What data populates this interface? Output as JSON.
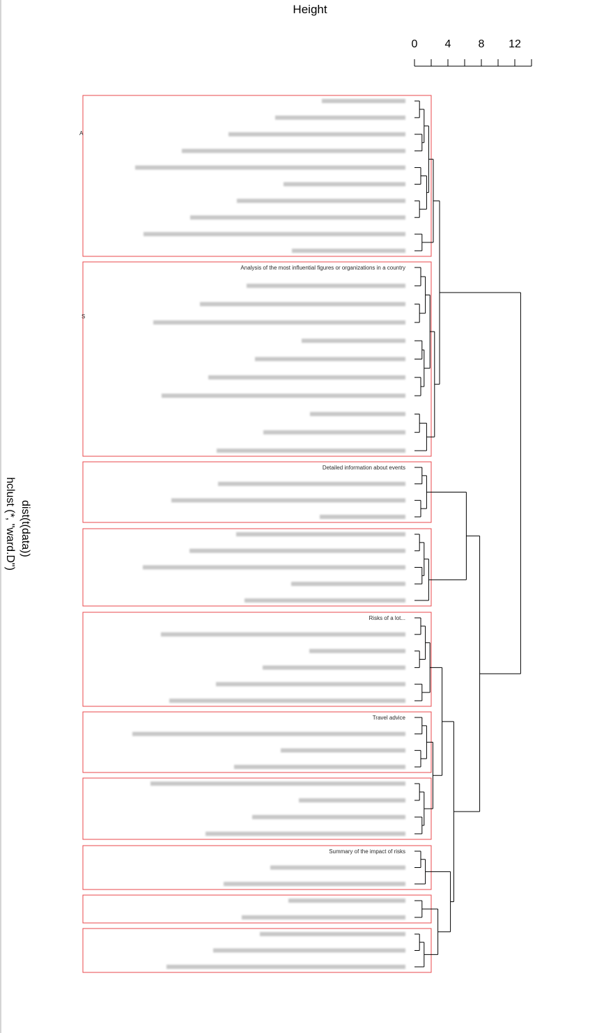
{
  "chart_data": {
    "type": "dendrogram",
    "orientation": "horizontal",
    "value_axis_title": "Height",
    "value_axis_ticks": [
      0,
      4,
      8,
      12
    ],
    "value_axis_range": [
      0,
      14
    ],
    "side_label_line1": "dist(t(data))",
    "side_label_line2": "hclust (*, \"ward.D\")",
    "highlight_color": "#e8474b",
    "line_color": "#000000",
    "clusters": [
      {
        "name": "cluster-1",
        "leaves": [
          "",
          "",
          "",
          "",
          "",
          "",
          "",
          "",
          "",
          ""
        ]
      },
      {
        "name": "cluster-2",
        "leaves": [
          "Analysis of the most influential figures or organizations in a country",
          "",
          "",
          "",
          "",
          "",
          "",
          "",
          "",
          "",
          ""
        ]
      },
      {
        "name": "cluster-3",
        "leaves": [
          "Detailed information about events",
          "",
          "",
          ""
        ]
      },
      {
        "name": "cluster-4",
        "leaves": [
          "",
          "",
          "",
          "",
          ""
        ]
      },
      {
        "name": "cluster-5",
        "leaves": [
          "Risks of a lot...",
          "",
          "",
          "",
          "",
          ""
        ]
      },
      {
        "name": "cluster-6",
        "leaves": [
          "Travel advice",
          "",
          "",
          ""
        ]
      },
      {
        "name": "cluster-7",
        "leaves": [
          "",
          "",
          "",
          ""
        ]
      },
      {
        "name": "cluster-8",
        "leaves": [
          "Summary of the impact of risks",
          "",
          ""
        ]
      },
      {
        "name": "cluster-9",
        "leaves": [
          "",
          ""
        ]
      },
      {
        "name": "cluster-10",
        "leaves": [
          "",
          "",
          ""
        ]
      }
    ],
    "partial_visible_text": [
      "A",
      "S"
    ]
  }
}
